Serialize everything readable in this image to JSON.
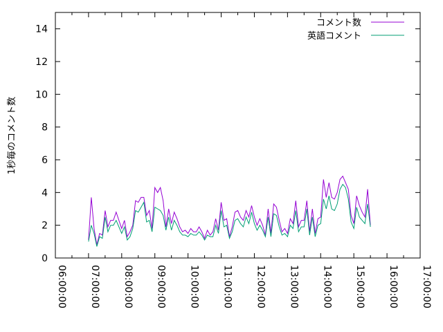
{
  "chart_data": {
    "type": "line",
    "ylabel": "1秒毎のコメント数",
    "xlabel": "",
    "x_ticks": [
      "06:00:00",
      "07:00:00",
      "08:00:00",
      "09:00:00",
      "10:00:00",
      "11:00:00",
      "12:00:00",
      "13:00:00",
      "14:00:00",
      "15:00:00",
      "16:00:00",
      "17:00:00"
    ],
    "xlim": [
      "06:00:00",
      "17:00:00"
    ],
    "ylim": [
      0,
      15
    ],
    "y_ticks": [
      0,
      2,
      4,
      6,
      8,
      10,
      12,
      14
    ],
    "grid": false,
    "legend_position": "top-right",
    "x_start": "07:00:00",
    "x_step_minutes": 5,
    "series": [
      {
        "name": "コメント数",
        "color": "#9400d3",
        "values": [
          1.1,
          3.7,
          1.8,
          0.8,
          1.5,
          1.4,
          2.9,
          1.9,
          2.3,
          2.3,
          2.8,
          2.3,
          1.8,
          2.3,
          1.3,
          1.6,
          2.0,
          3.5,
          3.4,
          3.7,
          3.7,
          2.6,
          2.9,
          1.8,
          4.3,
          4.0,
          4.3,
          3.5,
          1.9,
          3.0,
          2.1,
          2.8,
          2.4,
          1.9,
          1.6,
          1.7,
          1.5,
          1.8,
          1.6,
          1.6,
          1.9,
          1.6,
          1.2,
          1.7,
          1.4,
          1.6,
          2.4,
          1.7,
          3.4,
          2.3,
          2.4,
          1.3,
          1.9,
          2.8,
          2.9,
          2.5,
          2.3,
          2.9,
          2.5,
          3.2,
          2.5,
          2.0,
          2.4,
          2.0,
          1.4,
          3.0,
          1.5,
          3.3,
          3.1,
          2.3,
          1.6,
          1.8,
          1.5,
          2.4,
          2.1,
          3.5,
          1.9,
          2.3,
          2.3,
          3.5,
          1.6,
          3.0,
          1.5,
          2.4,
          2.5,
          4.8,
          3.7,
          4.6,
          3.7,
          3.6,
          4.0,
          4.8,
          5.0,
          4.6,
          4.2,
          2.6,
          2.1,
          3.8,
          3.2,
          2.8,
          2.5,
          4.2,
          2.0
        ]
      },
      {
        "name": "英語コメント",
        "color": "#009e73",
        "values": [
          1.0,
          2.0,
          1.5,
          0.7,
          1.3,
          1.2,
          2.5,
          1.6,
          2.0,
          2.0,
          2.3,
          1.9,
          1.5,
          1.9,
          1.1,
          1.3,
          1.8,
          2.9,
          2.8,
          3.1,
          3.4,
          2.2,
          2.3,
          1.6,
          3.1,
          3.0,
          2.9,
          2.6,
          1.7,
          2.5,
          1.7,
          2.3,
          2.0,
          1.6,
          1.4,
          1.4,
          1.3,
          1.5,
          1.4,
          1.4,
          1.6,
          1.4,
          1.1,
          1.4,
          1.3,
          1.3,
          2.0,
          1.5,
          2.9,
          1.9,
          2.0,
          1.2,
          1.6,
          2.3,
          2.4,
          2.1,
          1.9,
          2.5,
          2.1,
          2.8,
          2.1,
          1.7,
          2.0,
          1.7,
          1.3,
          2.5,
          1.3,
          2.7,
          2.6,
          1.9,
          1.4,
          1.5,
          1.3,
          2.0,
          1.8,
          2.9,
          1.6,
          1.9,
          1.9,
          3.0,
          1.4,
          2.5,
          1.3,
          2.0,
          2.1,
          3.6,
          3.0,
          3.8,
          3.0,
          2.9,
          3.3,
          4.2,
          4.5,
          4.3,
          3.6,
          2.2,
          1.8,
          3.1,
          2.5,
          2.3,
          2.1,
          3.3,
          1.9
        ]
      }
    ]
  }
}
